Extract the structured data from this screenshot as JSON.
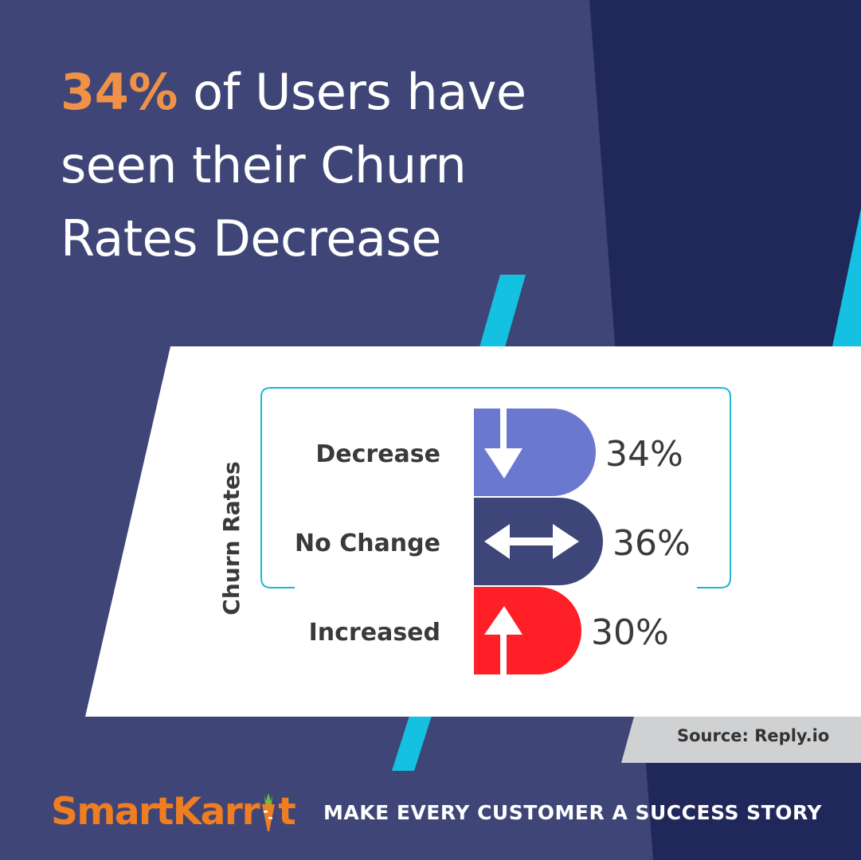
{
  "headline": {
    "highlight": "34%",
    "line1_rest": " of Users have",
    "line2": "seen their Churn",
    "line3": "Rates Decrease"
  },
  "chart_data": {
    "type": "bar",
    "ylabel": "Churn Rates",
    "categories": [
      "Decrease",
      "No Change",
      "Increased"
    ],
    "values": [
      34,
      36,
      30
    ],
    "value_labels": [
      "34%",
      "36%",
      "30%"
    ],
    "icons": [
      "arrow-down-icon",
      "arrow-left-right-icon",
      "arrow-up-icon"
    ],
    "colors": [
      "#6a79cf",
      "#3e4579",
      "#ff1f26"
    ],
    "bracketed_categories": [
      "Decrease",
      "No Change"
    ]
  },
  "source": "Source: Reply.io",
  "brand": {
    "name_part1": "Smart",
    "name_part2": "Karr",
    "name_part3": "t",
    "tagline": "MAKE EVERY CUSTOMER A SUCCESS STORY"
  },
  "colors": {
    "background": "#3f4677",
    "band_dark": "#20275a",
    "accent_cyan": "#14c1e0",
    "highlight_orange": "#ef9247",
    "logo_orange": "#ef7d22",
    "source_box": "#d0d1d3"
  }
}
